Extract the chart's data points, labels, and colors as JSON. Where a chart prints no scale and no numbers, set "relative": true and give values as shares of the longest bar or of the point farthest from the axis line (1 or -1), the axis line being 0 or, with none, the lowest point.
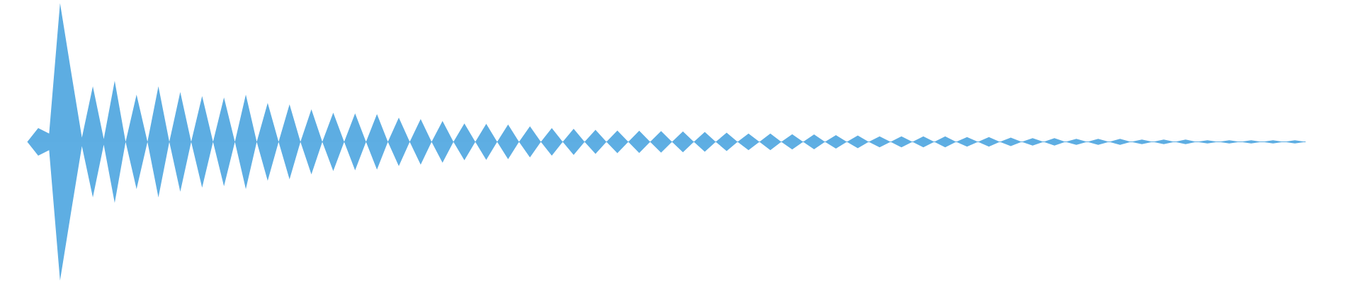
{
  "chart_data": {
    "type": "area",
    "relative": true,
    "categories": [
      null,
      null,
      null,
      null,
      null,
      null,
      null,
      null,
      null,
      null,
      null,
      null,
      null,
      null,
      null,
      null,
      null,
      null,
      null,
      null,
      null,
      null,
      null,
      null,
      null,
      null,
      null,
      null,
      null,
      null,
      null,
      null,
      null,
      null,
      null,
      null,
      null,
      null,
      null,
      null,
      null,
      null,
      null,
      null,
      null,
      null,
      null,
      null,
      null,
      null,
      null,
      null,
      null,
      null,
      null,
      null,
      null,
      null,
      null,
      null,
      null,
      null,
      null,
      null,
      null,
      null,
      null,
      null,
      null,
      null,
      null,
      null,
      null,
      null,
      null,
      null,
      null,
      null,
      null,
      null,
      null,
      null,
      null,
      null,
      null,
      null,
      null,
      null,
      null,
      null,
      null,
      null,
      null,
      null,
      null,
      null,
      null,
      null,
      null,
      null,
      null,
      null,
      null,
      null,
      null,
      null,
      null,
      null,
      null,
      null,
      null,
      null,
      null,
      null,
      null,
      null,
      null,
      null
    ],
    "series": [
      {
        "color": "#5dade2",
        "values": [
          0,
          0.1,
          0.06,
          1.0,
          0.51,
          0.03,
          0.4,
          0.02,
          0.44,
          0,
          0.34,
          0,
          0.4,
          0,
          0.36,
          0,
          0.33,
          0,
          0.32,
          0,
          0.34,
          0,
          0.28,
          0,
          0.27,
          0,
          0.235,
          0,
          0.21,
          0,
          0.205,
          0,
          0.2,
          0,
          0.175,
          0,
          0.165,
          0,
          0.15,
          0,
          0.133,
          0,
          0.13,
          0,
          0.125,
          0,
          0.112,
          0,
          0.1,
          0,
          0.095,
          0,
          0.087,
          0,
          0.082,
          0,
          0.08,
          0,
          0.078,
          0,
          0.075,
          0,
          0.071,
          0,
          0.066,
          0,
          0.06,
          0,
          0.06,
          0,
          0.055,
          0,
          0.053,
          0,
          0.049,
          0,
          0.046,
          0,
          0.04,
          0,
          0.04,
          0,
          0.04,
          0,
          0.04,
          0,
          0.035,
          0,
          0.035,
          0,
          0.031,
          0,
          0.027,
          0,
          0.027,
          0,
          0.022,
          0,
          0.022,
          0,
          0.022,
          0,
          0.017,
          0,
          0.017,
          0,
          0.017,
          0,
          0.012,
          0,
          0.012,
          0,
          0.012,
          0,
          0.012,
          0,
          0.012,
          0
        ]
      },
      {
        "color": "#5eaee3",
        "values": [
          0,
          -0.1,
          -0.06,
          -1.0,
          -0.51,
          -0.03,
          -0.4,
          -0.02,
          -0.44,
          0,
          -0.34,
          0,
          -0.4,
          0,
          -0.36,
          0,
          -0.33,
          0,
          -0.32,
          0,
          -0.34,
          0,
          -0.28,
          0,
          -0.27,
          0,
          -0.235,
          0,
          -0.21,
          0,
          -0.205,
          0,
          -0.2,
          0,
          -0.175,
          0,
          -0.165,
          0,
          -0.15,
          0,
          -0.133,
          0,
          -0.13,
          0,
          -0.125,
          0,
          -0.112,
          0,
          -0.1,
          0,
          -0.095,
          0,
          -0.087,
          0,
          -0.082,
          0,
          -0.08,
          0,
          -0.078,
          0,
          -0.075,
          0,
          -0.071,
          0,
          -0.066,
          0,
          -0.06,
          0,
          -0.06,
          0,
          -0.055,
          0,
          -0.053,
          0,
          -0.049,
          0,
          -0.046,
          0,
          -0.04,
          0,
          -0.04,
          0,
          -0.04,
          0,
          -0.04,
          0,
          -0.035,
          0,
          -0.035,
          0,
          -0.031,
          0,
          -0.027,
          0,
          -0.027,
          0,
          -0.022,
          0,
          -0.022,
          0,
          -0.022,
          0,
          -0.017,
          0,
          -0.017,
          0,
          -0.017,
          0,
          -0.012,
          0,
          -0.012,
          0,
          -0.012,
          0,
          -0.012,
          0,
          -0.012,
          0
        ]
      }
    ]
  }
}
